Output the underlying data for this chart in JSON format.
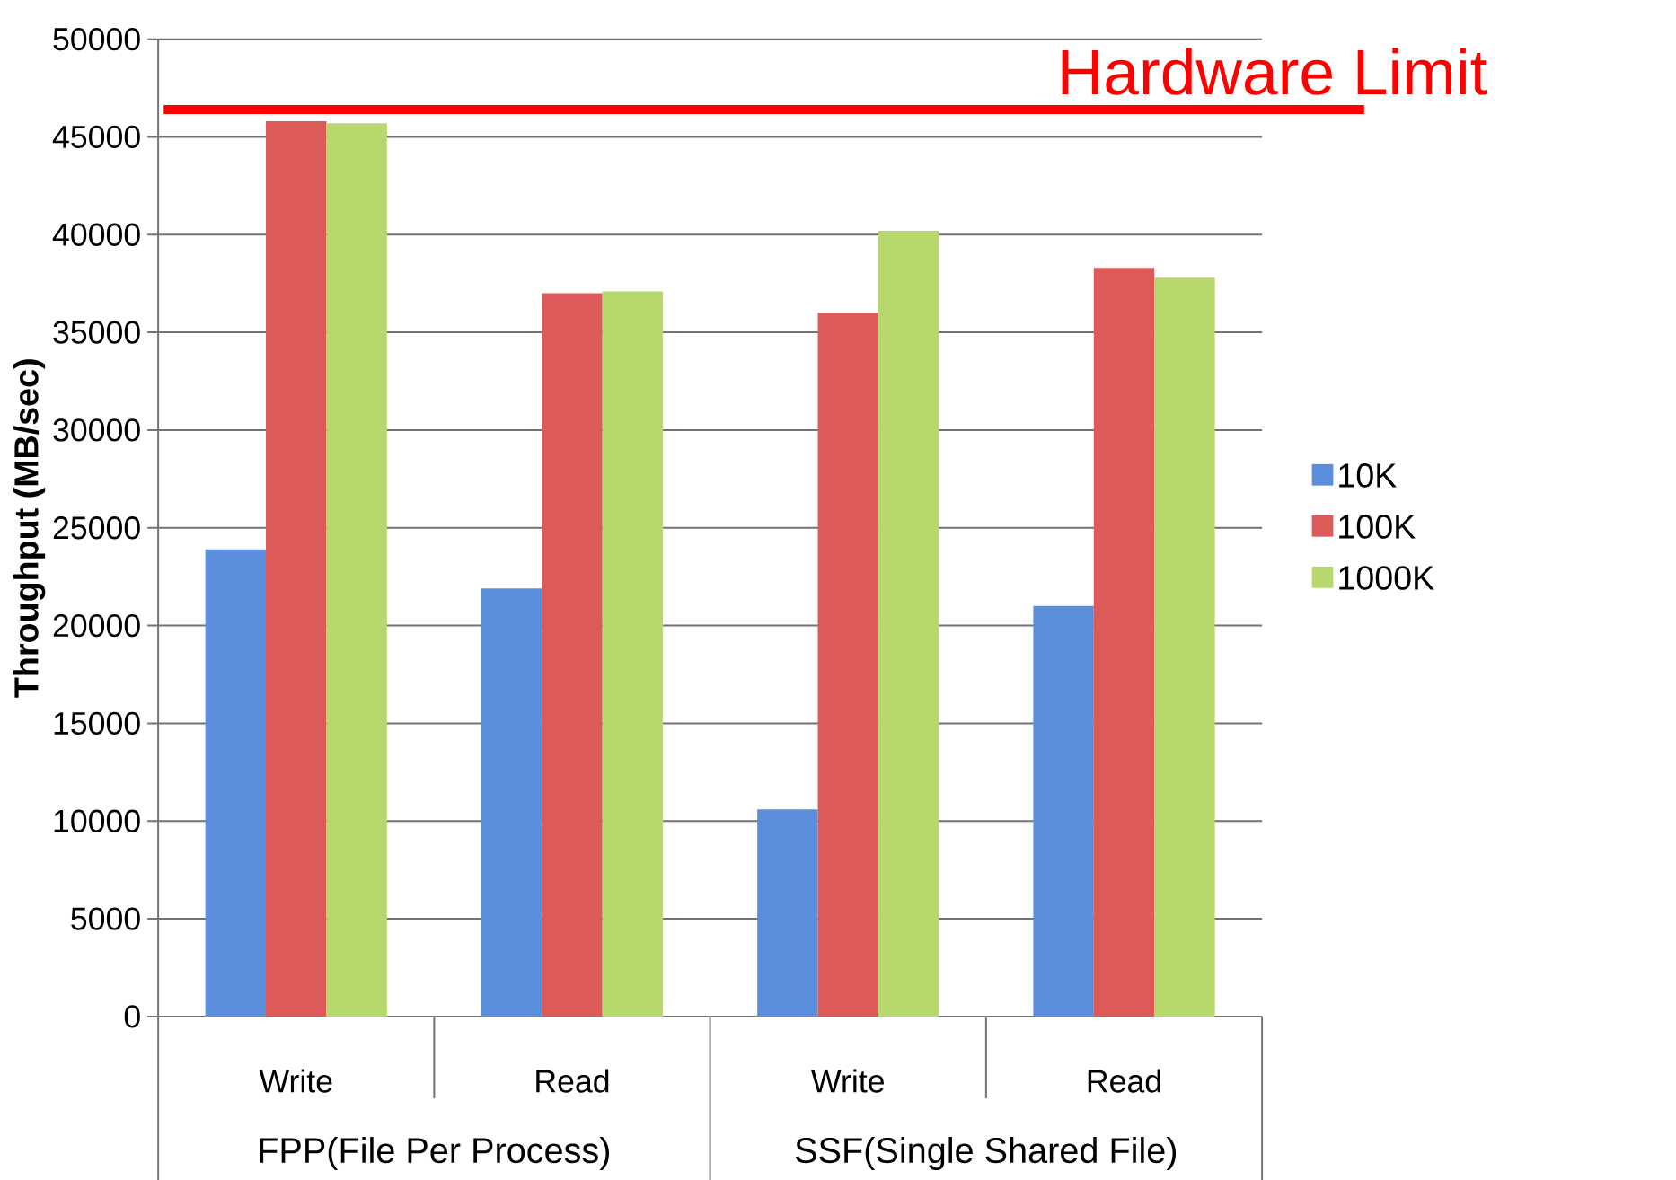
{
  "chart_data": {
    "type": "bar",
    "ylabel": "Throughput (MB/sec)",
    "categories": [
      "Write",
      "Read",
      "Write",
      "Read"
    ],
    "series": [
      {
        "name": "10K",
        "color": "#5b8fdc",
        "values": [
          23900,
          21900,
          10600,
          21000
        ]
      },
      {
        "name": "100K",
        "color": "#dc5a58",
        "values": [
          45800,
          37000,
          36000,
          38300
        ]
      },
      {
        "name": "1000K",
        "color": "#b6d86c",
        "values": [
          45700,
          37100,
          40200,
          37800
        ]
      }
    ],
    "ylim": [
      0,
      50000
    ],
    "yticks": [
      0,
      5000,
      10000,
      15000,
      20000,
      25000,
      30000,
      35000,
      40000,
      45000,
      50000
    ],
    "grid": "y",
    "legend": "right",
    "ref_lines": [
      {
        "axis": "y",
        "value": 46400,
        "label": "Hardware Limit",
        "color": "#ff0000"
      }
    ],
    "annotations": [
      "FPP(File Per Process)",
      "SSF(Single Shared File)"
    ]
  }
}
